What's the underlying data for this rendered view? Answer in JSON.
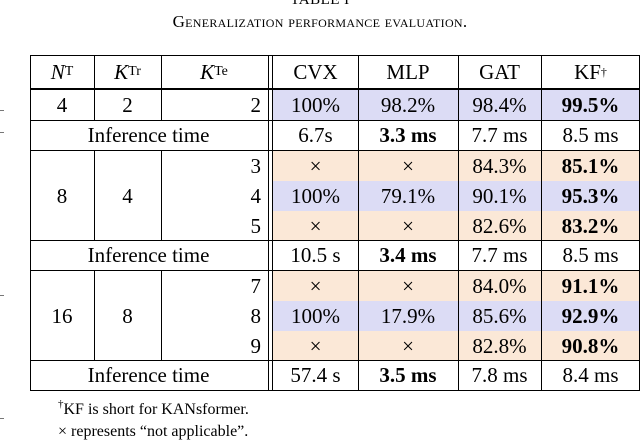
{
  "caption": {
    "label": "TABLE I",
    "title": "Generalization performance evaluation."
  },
  "table": {
    "headers": {
      "nt": {
        "sym": "N",
        "sub": "T"
      },
      "ktr": {
        "sym": "K",
        "sub": "Tr"
      },
      "kte": {
        "sym": "K",
        "sub": "Te"
      },
      "cvx": "CVX",
      "mlp": "MLP",
      "gat": "GAT",
      "kf": {
        "text": "KF",
        "sup": "†"
      }
    },
    "groups": [
      {
        "nt": "4",
        "ktr": "2",
        "rows": [
          {
            "kte": "2",
            "cvx": "100%",
            "mlp": "98.2%",
            "gat": "98.4%",
            "kf": "99.5%"
          }
        ],
        "inference": {
          "label": "Inference time",
          "cvx": "6.7s",
          "mlp": "3.3 ms",
          "gat": "7.7 ms",
          "kf": "8.5 ms"
        }
      },
      {
        "nt": "8",
        "ktr": "4",
        "rows": [
          {
            "kte": "3",
            "cvx": "×",
            "mlp": "×",
            "gat": "84.3%",
            "kf": "85.1%"
          },
          {
            "kte": "4",
            "cvx": "100%",
            "mlp": "79.1%",
            "gat": "90.1%",
            "kf": "95.3%"
          },
          {
            "kte": "5",
            "cvx": "×",
            "mlp": "×",
            "gat": "82.6%",
            "kf": "83.2%"
          }
        ],
        "inference": {
          "label": "Inference time",
          "cvx": "10.5 s",
          "mlp": "3.4 ms",
          "gat": "7.7 ms",
          "kf": "8.5 ms"
        }
      },
      {
        "nt": "16",
        "ktr": "8",
        "rows": [
          {
            "kte": "7",
            "cvx": "×",
            "mlp": "×",
            "gat": "84.0%",
            "kf": "91.1%"
          },
          {
            "kte": "8",
            "cvx": "100%",
            "mlp": "17.9%",
            "gat": "85.6%",
            "kf": "92.9%"
          },
          {
            "kte": "9",
            "cvx": "×",
            "mlp": "×",
            "gat": "82.8%",
            "kf": "90.8%"
          }
        ],
        "inference": {
          "label": "Inference time",
          "cvx": "57.4 s",
          "mlp": "3.5 ms",
          "gat": "7.8 ms",
          "kf": "8.4 ms"
        }
      }
    ]
  },
  "footnotes": {
    "dagger": "†",
    "note1": "KF is short for KANsformer.",
    "note2": "× represents “not applicable”."
  },
  "colors": {
    "cvx_mlp_highlight": "#dcdcf5",
    "na_highlight": "#fbe8d7"
  }
}
